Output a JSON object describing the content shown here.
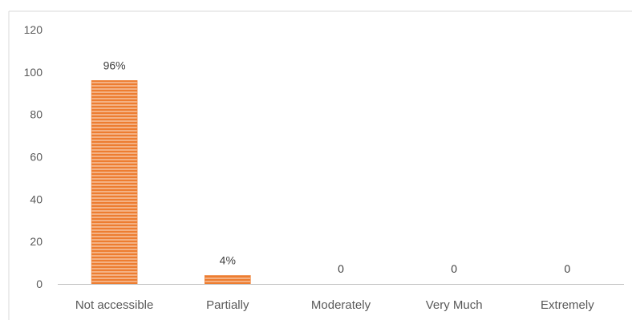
{
  "chart_data": {
    "type": "bar",
    "title": "",
    "xlabel": "",
    "ylabel": "",
    "categories": [
      "Not accessible",
      "Partially",
      "Moderately",
      "Very Much",
      "Extremely"
    ],
    "values": [
      96,
      4,
      0,
      0,
      0
    ],
    "data_labels": [
      "96%",
      "4%",
      "0",
      "0",
      "0"
    ],
    "ylim": [
      0,
      120
    ],
    "yticks": [
      0,
      20,
      40,
      60,
      80,
      100,
      120
    ],
    "grid": false,
    "legend": "none",
    "colors": {
      "bar_fill": "#F4B183",
      "bar_stripe": "#ED7D31",
      "axis": "#BFBFBF",
      "frame": "#D9D9D9"
    }
  }
}
